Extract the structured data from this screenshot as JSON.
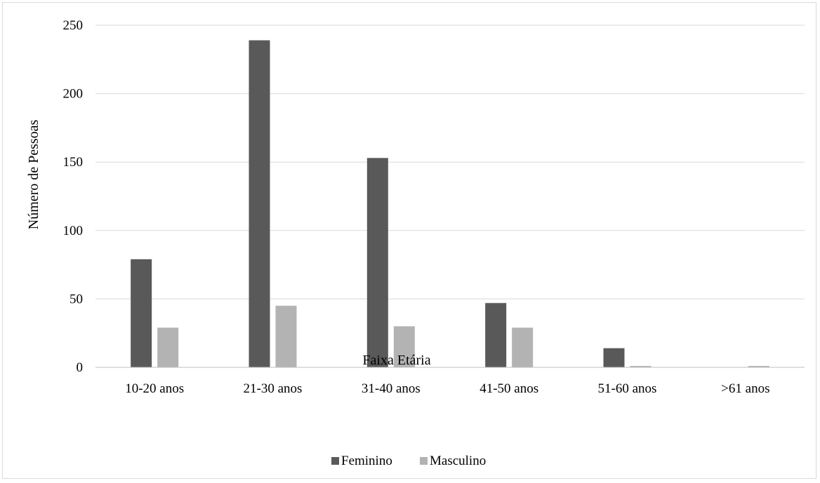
{
  "chart_data": {
    "type": "bar",
    "title": "",
    "xlabel": "Faixa Etária",
    "ylabel": "Número de Pessoas",
    "ylim": [
      0,
      250
    ],
    "yticks": [
      "0",
      "50",
      "100",
      "150",
      "200",
      "250"
    ],
    "grid": true,
    "legend_position": "bottom",
    "categories": [
      "10-20 anos",
      "21-30 anos",
      "31-40 anos",
      "41-50 anos",
      "51-60 anos",
      ">61 anos"
    ],
    "series": [
      {
        "name": "Feminino",
        "color": "#595959",
        "values": [
          79,
          239,
          153,
          47,
          14,
          0
        ]
      },
      {
        "name": "Masculino",
        "color": "#b3b3b3",
        "values": [
          29,
          45,
          30,
          29,
          1,
          1
        ]
      }
    ]
  }
}
